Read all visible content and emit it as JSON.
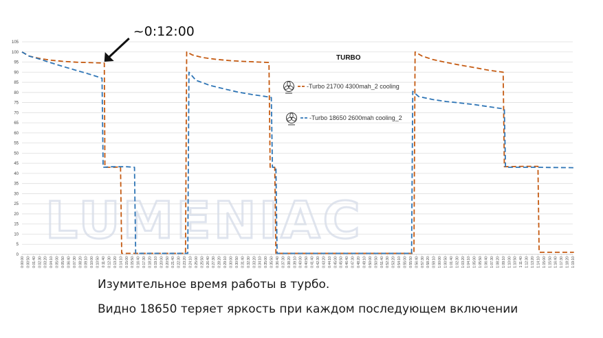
{
  "chart_data": {
    "type": "line",
    "title": "TURBO",
    "xlabel": "",
    "ylabel": "",
    "ylim": [
      0,
      105
    ],
    "yticks": [
      0,
      5,
      10,
      15,
      20,
      25,
      30,
      35,
      40,
      45,
      50,
      55,
      60,
      65,
      70,
      75,
      80,
      85,
      90,
      95,
      100,
      105
    ],
    "grid": true,
    "legend_position": "center-right",
    "x_tick_labels": [
      "0:00:00",
      "0:00:50",
      "0:01:40",
      "0:02:30",
      "0:03:20",
      "0:04:10",
      "0:05:00",
      "0:05:50",
      "0:06:40",
      "0:07:30",
      "0:08:20",
      "0:09:10",
      "0:10:00",
      "0:10:50",
      "0:11:40",
      "0:12:30",
      "0:13:20",
      "0:14:10",
      "0:15:00",
      "0:15:50",
      "0:16:40",
      "0:17:30",
      "0:18:20",
      "0:19:10",
      "0:20:00",
      "0:20:50",
      "0:21:40",
      "0:22:30",
      "0:23:20",
      "0:24:10",
      "0:25:00",
      "0:25:50",
      "0:26:40",
      "0:27:30",
      "0:28:20",
      "0:29:10",
      "0:30:00",
      "0:30:50",
      "0:31:40",
      "0:32:30",
      "0:33:20",
      "0:34:10",
      "0:35:00",
      "0:35:50",
      "0:36:40",
      "0:37:30",
      "0:38:20",
      "0:39:10",
      "0:40:00",
      "0:40:50",
      "0:41:40",
      "0:42:30",
      "0:43:20",
      "0:44:10",
      "0:45:00",
      "0:45:50",
      "0:46:40",
      "0:47:30",
      "0:48:20",
      "0:49:10",
      "0:50:00",
      "0:50:50",
      "0:51:40",
      "0:52:30",
      "0:53:20",
      "0:54:10",
      "0:55:00",
      "0:55:50",
      "0:56:40",
      "0:57:30",
      "0:58:20",
      "0:59:10",
      "1:00:00",
      "1:00:50",
      "1:01:40",
      "1:02:30",
      "1:03:20",
      "1:04:10",
      "1:05:00",
      "1:05:50",
      "1:06:40",
      "1:07:30",
      "1:08:20",
      "1:09:10",
      "1:10:00",
      "1:10:50",
      "1:11:40",
      "1:12:30",
      "1:13:20",
      "1:14:10",
      "1:15:00",
      "1:15:50",
      "1:16:40",
      "1:17:30",
      "1:18:20",
      "1:19:10"
    ],
    "series": [
      {
        "name": "Turbo 21700 4300mah_2 cooling",
        "color": "#c55a11",
        "icon": "fan-icon",
        "points": [
          [
            "0:00:00",
            100
          ],
          [
            "0:01:00",
            98
          ],
          [
            "0:02:30",
            96.8
          ],
          [
            "0:04:00",
            96
          ],
          [
            "0:06:00",
            95.3
          ],
          [
            "0:08:00",
            94.9
          ],
          [
            "0:10:00",
            94.7
          ],
          [
            "0:11:50",
            94.5
          ],
          [
            "0:11:55",
            43
          ],
          [
            "0:13:20",
            43
          ],
          [
            "0:14:10",
            43.3
          ],
          [
            "0:14:20",
            0.5
          ],
          [
            "0:23:30",
            0.5
          ],
          [
            "0:23:40",
            100
          ],
          [
            "0:24:30",
            98.5
          ],
          [
            "0:26:00",
            97.2
          ],
          [
            "0:28:00",
            96.3
          ],
          [
            "0:30:00",
            95.7
          ],
          [
            "0:32:00",
            95.3
          ],
          [
            "0:34:00",
            95
          ],
          [
            "0:35:30",
            94.8
          ],
          [
            "0:35:40",
            43
          ],
          [
            "0:36:20",
            43
          ],
          [
            "0:36:30",
            0.5
          ],
          [
            "0:56:20",
            0.5
          ],
          [
            "0:56:30",
            100
          ],
          [
            "0:57:30",
            98
          ],
          [
            "0:59:00",
            96.3
          ],
          [
            "1:01:00",
            94.8
          ],
          [
            "1:03:00",
            93.5
          ],
          [
            "1:05:00",
            92.3
          ],
          [
            "1:07:00",
            91
          ],
          [
            "1:09:10",
            90
          ],
          [
            "1:09:20",
            43.3
          ],
          [
            "1:12:00",
            43.5
          ],
          [
            "1:14:10",
            43.5
          ],
          [
            "1:14:20",
            1
          ],
          [
            "1:19:20",
            1
          ]
        ]
      },
      {
        "name": "Turbo 18650 2600mah cooling_2",
        "color": "#2e75b6",
        "icon": "fan-icon",
        "points": [
          [
            "0:00:00",
            100
          ],
          [
            "0:01:00",
            98
          ],
          [
            "0:02:30",
            96.5
          ],
          [
            "0:04:00",
            94.8
          ],
          [
            "0:06:00",
            92.7
          ],
          [
            "0:08:00",
            90.7
          ],
          [
            "0:10:00",
            88.7
          ],
          [
            "0:11:30",
            87
          ],
          [
            "0:11:40",
            43
          ],
          [
            "0:13:00",
            43.3
          ],
          [
            "0:15:00",
            43.3
          ],
          [
            "0:16:10",
            43
          ],
          [
            "0:16:20",
            0.5
          ],
          [
            "0:23:50",
            0.5
          ],
          [
            "0:24:00",
            90
          ],
          [
            "0:25:00",
            86
          ],
          [
            "0:27:00",
            83.5
          ],
          [
            "0:29:00",
            81.8
          ],
          [
            "0:31:00",
            80.2
          ],
          [
            "0:33:00",
            79
          ],
          [
            "0:35:00",
            78
          ],
          [
            "0:35:50",
            77.5
          ],
          [
            "0:36:00",
            43
          ],
          [
            "0:36:30",
            43
          ],
          [
            "0:36:40",
            0.5
          ],
          [
            "0:56:00",
            0.5
          ],
          [
            "0:56:10",
            80.5
          ],
          [
            "0:57:00",
            78
          ],
          [
            "0:59:00",
            76.5
          ],
          [
            "1:01:00",
            75.5
          ],
          [
            "1:03:00",
            74.8
          ],
          [
            "1:05:00",
            74
          ],
          [
            "1:07:00",
            73
          ],
          [
            "1:09:00",
            72
          ],
          [
            "1:09:20",
            71.5
          ],
          [
            "1:09:30",
            43
          ],
          [
            "1:12:00",
            43
          ],
          [
            "1:14:00",
            43
          ],
          [
            "1:16:00",
            42.9
          ],
          [
            "1:19:20",
            42.8
          ]
        ]
      }
    ],
    "annotations": [
      {
        "text": "~0:12:00",
        "target_x": "0:11:50",
        "target_y": 94.5
      }
    ]
  },
  "watermark": {
    "text": "LUMENIAC"
  },
  "captions": {
    "line1": "Изумительное время работы в турбо.",
    "line2": "Видно 18650 теряет яркость при каждом последующем включении"
  }
}
